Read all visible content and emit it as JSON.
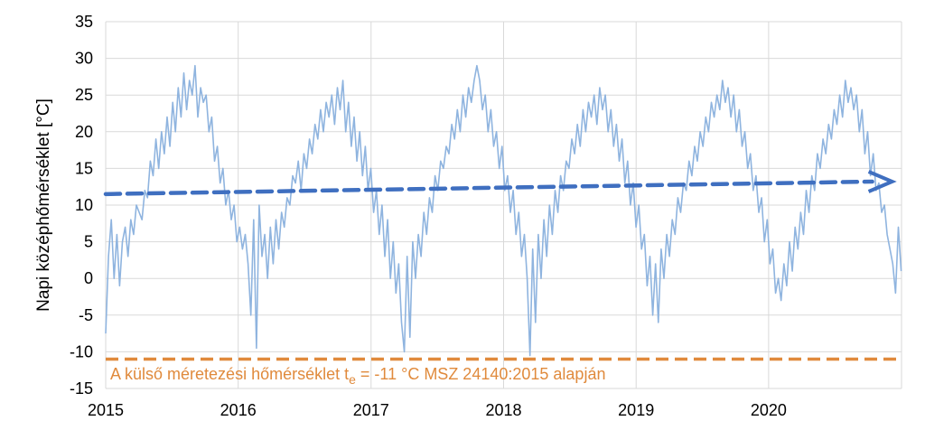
{
  "chart_data": {
    "type": "line",
    "title": "",
    "xlabel": "",
    "ylabel": "Napi középhőmérséklet [°C]",
    "xlim": [
      "2015-01-01",
      "2021-01-01"
    ],
    "ylim": [
      -15,
      35
    ],
    "x_ticks": [
      "2015",
      "2016",
      "2017",
      "2018",
      "2019",
      "2020"
    ],
    "y_ticks": [
      35,
      30,
      25,
      20,
      15,
      10,
      5,
      0,
      -5,
      -10,
      -15
    ],
    "grid": true,
    "colors": {
      "daily": "#8fb4df",
      "trend": "#3f6fc0",
      "design": "#e08a3c",
      "grid": "#d9d9d9"
    },
    "series": [
      {
        "role": "daily",
        "x_start": "2015-01-01",
        "x_end": "2020-12-31",
        "sample_interval_days": 7,
        "values": [
          -7.5,
          3,
          8,
          0,
          6,
          -1,
          5,
          7,
          3,
          8,
          6,
          10,
          9,
          8,
          12,
          11,
          16,
          14,
          19,
          15,
          20,
          17,
          22,
          18,
          24,
          20,
          26,
          22,
          28,
          23,
          27,
          25,
          29,
          22,
          26,
          24,
          25,
          20,
          22,
          16,
          18,
          13,
          15,
          10,
          12,
          8,
          10,
          5,
          7,
          4,
          6,
          2,
          -5,
          8,
          -9.5,
          10,
          3,
          6,
          0,
          7,
          2,
          8,
          4,
          9,
          7,
          11,
          10,
          14,
          13,
          16,
          12,
          17,
          15,
          19,
          17,
          21,
          19,
          23,
          20,
          24,
          22,
          25,
          21,
          26,
          23,
          27,
          20,
          24,
          18,
          22,
          16,
          20,
          14,
          18,
          12,
          15,
          9,
          12,
          6,
          10,
          3,
          8,
          0,
          5,
          -2,
          2,
          -6,
          -10,
          3,
          -8,
          5,
          0,
          6,
          3,
          9,
          6,
          11,
          9,
          14,
          12,
          16,
          15,
          18,
          17,
          21,
          19,
          23,
          20,
          25,
          22,
          26,
          24,
          27,
          29,
          27,
          23,
          25,
          20,
          23,
          18,
          20,
          15,
          18,
          12,
          14,
          9,
          12,
          6,
          9,
          3,
          6,
          0,
          -10.5,
          4,
          -6,
          6,
          0,
          8,
          3,
          10,
          6,
          12,
          9,
          14,
          12,
          16,
          15,
          19,
          17,
          21,
          18,
          23,
          20,
          24,
          22,
          25,
          21,
          26,
          23,
          25,
          20,
          23,
          18,
          21,
          16,
          19,
          13,
          16,
          10,
          13,
          7,
          10,
          4,
          6,
          -1,
          3,
          -5,
          2,
          -6,
          4,
          0,
          6,
          3,
          8,
          6,
          11,
          9,
          13,
          12,
          16,
          14,
          18,
          16,
          20,
          18,
          22,
          20,
          24,
          22,
          25,
          23,
          27,
          24,
          26,
          22,
          25,
          20,
          23,
          18,
          20,
          15,
          17,
          12,
          14,
          9,
          11,
          5,
          8,
          2,
          4,
          -2,
          0,
          -3,
          2,
          -1,
          5,
          1,
          7,
          4,
          9,
          6,
          12,
          9,
          14,
          12,
          17,
          15,
          19,
          17,
          21,
          19,
          23,
          21,
          25,
          22,
          27,
          24,
          26,
          23,
          25,
          20,
          23,
          17,
          20,
          14,
          17,
          12,
          13,
          9,
          10,
          6,
          4,
          2,
          -2,
          7,
          1
        ]
      },
      {
        "role": "trend",
        "x": [
          "2015-01-01",
          "2020-12-31"
        ],
        "values": [
          11.5,
          13.2
        ]
      },
      {
        "role": "design",
        "x": [
          "2015-01-01",
          "2020-12-31"
        ],
        "values": [
          -11,
          -11
        ]
      }
    ],
    "annotation": {
      "text_main": "A külső méretezési hőmérséklet t",
      "text_sub": "e",
      "text_rest": " = -11 °C MSZ 24140:2015 alapján"
    }
  }
}
